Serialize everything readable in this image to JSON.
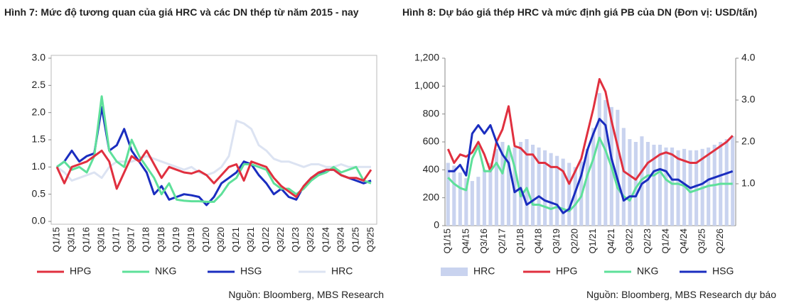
{
  "chart_data": [
    {
      "type": "line",
      "title": "Hình 7: Mức độ tương quan của giá HRC và các DN thép từ năm 2015 - nay",
      "source": "Nguồn: Bloomberg, MBS Research",
      "categories": [
        "Q1/15",
        null,
        "Q3/15",
        null,
        "Q1/16",
        null,
        "Q3/16",
        null,
        "Q1/17",
        null,
        "Q3/17",
        null,
        "Q1/18",
        null,
        "Q3/18",
        null,
        "Q1/19",
        null,
        "Q3/19",
        null,
        "Q1/20",
        null,
        "Q3/20",
        null,
        "Q1/21",
        null,
        "Q3/21",
        null,
        "Q1/22",
        null,
        "Q3/22",
        null,
        "Q1/23",
        null,
        "Q3/23",
        null,
        "Q1/24",
        null,
        "Q3/24",
        null,
        "Q1/25",
        null,
        "Q3/25"
      ],
      "ylim": [
        0,
        3
      ],
      "yticks": [
        {
          "value": 0,
          "label": "0.0"
        },
        {
          "value": 0.5,
          "label": "0.5"
        },
        {
          "value": 1,
          "label": "1.0"
        },
        {
          "value": 1.5,
          "label": "1.5"
        },
        {
          "value": 2,
          "label": "2.0"
        },
        {
          "value": 2.5,
          "label": "2.5"
        },
        {
          "value": 3,
          "label": "3.0"
        }
      ],
      "grid": false,
      "legend": "bottom",
      "series": [
        {
          "name": "HPG",
          "color": "#e0303f",
          "values": [
            1.0,
            0.7,
            1.0,
            1.05,
            1.1,
            1.2,
            1.3,
            1.1,
            0.6,
            0.9,
            1.2,
            1.1,
            1.3,
            1.05,
            0.8,
            1.0,
            0.95,
            0.9,
            0.88,
            0.93,
            0.85,
            0.7,
            0.85,
            1.0,
            1.05,
            0.75,
            1.1,
            1.05,
            1.0,
            0.8,
            0.65,
            0.55,
            0.45,
            0.65,
            0.8,
            0.9,
            0.95,
            0.95,
            0.85,
            0.8,
            0.8,
            0.75,
            0.95
          ]
        },
        {
          "name": "NKG",
          "color": "#5ee09a",
          "values": [
            1.0,
            1.1,
            0.95,
            1.0,
            0.9,
            1.2,
            2.3,
            1.3,
            1.1,
            1.0,
            1.5,
            1.2,
            1.0,
            0.8,
            0.5,
            0.7,
            0.4,
            0.38,
            0.37,
            0.37,
            0.36,
            0.36,
            0.5,
            0.7,
            0.8,
            1.05,
            1.05,
            1.0,
            0.95,
            0.7,
            0.6,
            0.6,
            0.5,
            0.6,
            0.75,
            0.85,
            0.9,
            1.0,
            0.9,
            0.95,
            1.0,
            0.75,
            0.7
          ]
        },
        {
          "name": "HSG",
          "color": "#1a2dbf",
          "values": [
            1.0,
            1.1,
            1.3,
            1.1,
            1.2,
            1.25,
            2.1,
            1.3,
            1.4,
            1.7,
            1.3,
            1.1,
            0.9,
            0.5,
            0.65,
            0.4,
            0.45,
            0.5,
            0.48,
            0.45,
            0.3,
            0.45,
            0.7,
            0.8,
            0.9,
            1.1,
            1.05,
            0.85,
            0.7,
            0.5,
            0.6,
            0.45,
            0.4,
            0.65,
            0.8,
            0.85,
            0.95,
            0.95,
            0.85,
            0.8,
            0.75,
            0.7,
            0.75
          ]
        },
        {
          "name": "HRC",
          "color": "#dce3f2",
          "values": [
            1.0,
            0.9,
            0.75,
            0.8,
            0.85,
            0.9,
            0.8,
            1.0,
            1.1,
            1.1,
            1.1,
            1.15,
            1.2,
            1.15,
            1.1,
            1.05,
            1.0,
            0.95,
            1.0,
            0.9,
            0.85,
            0.9,
            1.0,
            1.2,
            1.85,
            1.8,
            1.7,
            1.4,
            1.3,
            1.15,
            1.1,
            1.1,
            1.05,
            1.0,
            1.05,
            1.05,
            1.0,
            1.0,
            1.05,
            1.0,
            1.0,
            1.0,
            1.0
          ]
        }
      ]
    },
    {
      "type": "combo",
      "title": "Hình 8: Dự báo giá thép HRC và mức định giá PB của DN (Đơn vị: USD/tấn)",
      "source": "Nguồn: Bloomberg, MBS Research dự báo",
      "categories": [
        "Q1/15",
        null,
        null,
        "Q4/15",
        null,
        null,
        "Q3/16",
        null,
        null,
        "Q2/17",
        null,
        null,
        "Q1/18",
        null,
        null,
        "Q4/18",
        null,
        null,
        "Q3/19",
        null,
        null,
        "Q2/20",
        null,
        null,
        "Q1/21",
        null,
        null,
        "Q4/21",
        null,
        null,
        "Q3/22",
        null,
        null,
        "Q2/23",
        null,
        null,
        "Q1/24",
        null,
        null,
        "Q4/24",
        null,
        null,
        "Q3/25",
        null,
        null,
        "Q2/26",
        null,
        null
      ],
      "ylim": [
        0,
        1200
      ],
      "yticks": [
        0,
        200,
        400,
        600,
        800,
        {
          "value": 1000,
          "label": "1,000"
        },
        {
          "value": 1200,
          "label": "1,200"
        }
      ],
      "y2lim": [
        0,
        4
      ],
      "y2ticks": [
        {
          "value": 1,
          "label": "1.0"
        },
        {
          "value": 2,
          "label": "2.0"
        },
        {
          "value": 3,
          "label": "3.0"
        },
        {
          "value": 4,
          "label": "4.0"
        }
      ],
      "grid": false,
      "legend": "bottom",
      "series": [
        {
          "name": "HRC",
          "type": "bar",
          "color": "#c9d3ef",
          "values": [
            450,
            430,
            380,
            340,
            320,
            350,
            400,
            450,
            550,
            600,
            550,
            560,
            600,
            620,
            580,
            560,
            540,
            520,
            500,
            480,
            450,
            420,
            460,
            550,
            700,
            950,
            900,
            850,
            830,
            700,
            620,
            600,
            640,
            600,
            580,
            580,
            560,
            560,
            540,
            550,
            540,
            540,
            550,
            560,
            580,
            600,
            620,
            640
          ]
        },
        {
          "name": "HPG",
          "type": "line",
          "axis": "y2",
          "color": "#e0303f",
          "values": [
            1.83,
            1.5,
            1.7,
            1.65,
            1.75,
            2.0,
            1.7,
            1.3,
            2.0,
            2.3,
            2.85,
            1.9,
            1.85,
            1.7,
            1.7,
            1.5,
            1.5,
            1.4,
            1.4,
            1.3,
            1.0,
            1.3,
            1.6,
            2.2,
            2.8,
            3.5,
            3.2,
            2.5,
            1.9,
            1.3,
            1.2,
            1.1,
            1.3,
            1.5,
            1.6,
            1.7,
            1.75,
            1.7,
            1.6,
            1.55,
            1.5,
            1.5,
            1.6,
            1.7,
            1.8,
            1.9,
            2.0,
            2.15
          ]
        },
        {
          "name": "NKG",
          "type": "line",
          "axis": "y2",
          "color": "#5ee09a",
          "values": [
            1.15,
            1.0,
            0.9,
            0.85,
            1.6,
            1.9,
            1.3,
            1.3,
            1.5,
            1.25,
            1.9,
            1.4,
            0.7,
            0.9,
            0.5,
            0.5,
            0.45,
            0.4,
            0.45,
            0.4,
            0.35,
            0.5,
            0.7,
            1.2,
            1.6,
            2.1,
            1.8,
            1.4,
            0.9,
            0.7,
            0.6,
            0.9,
            1.1,
            1.2,
            1.2,
            1.3,
            1.1,
            1.0,
            1.0,
            0.95,
            0.8,
            0.85,
            0.9,
            0.95,
            0.97,
            1.0,
            1.0,
            1.0
          ]
        },
        {
          "name": "HSG",
          "type": "line",
          "axis": "y2",
          "color": "#1a2dbf",
          "values": [
            1.3,
            1.3,
            1.45,
            1.2,
            2.2,
            2.4,
            2.2,
            2.4,
            2.0,
            1.7,
            1.5,
            0.8,
            0.9,
            0.5,
            0.6,
            0.7,
            0.6,
            0.55,
            0.5,
            0.3,
            0.4,
            0.8,
            1.2,
            1.8,
            2.2,
            2.55,
            2.4,
            1.6,
            1.1,
            0.6,
            0.7,
            0.7,
            1.0,
            1.1,
            1.3,
            1.35,
            1.3,
            1.1,
            1.1,
            1.0,
            0.9,
            0.95,
            1.0,
            1.1,
            1.15,
            1.2,
            1.25,
            1.3
          ]
        }
      ]
    }
  ]
}
